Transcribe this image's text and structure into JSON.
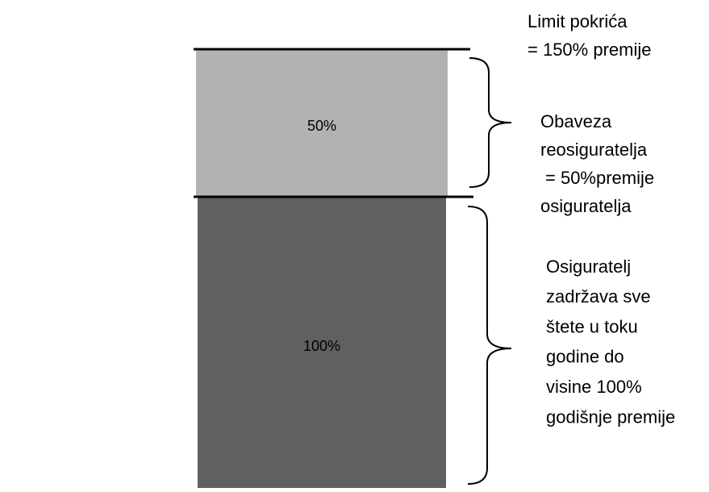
{
  "blocks": [
    {
      "label": "50%"
    },
    {
      "label": "100%"
    }
  ],
  "annotations": {
    "limit": [
      "Limit pokrića",
      "= 150% premije"
    ],
    "reinsurer": [
      "Obaveza",
      "reosiguratelja",
      "= 50%premije",
      "osiguratelja"
    ],
    "insurer": [
      "Osiguratelj",
      "zadržava sve",
      "štete u toku",
      "godine do",
      "visine 100%",
      "godišnje premije"
    ]
  }
}
